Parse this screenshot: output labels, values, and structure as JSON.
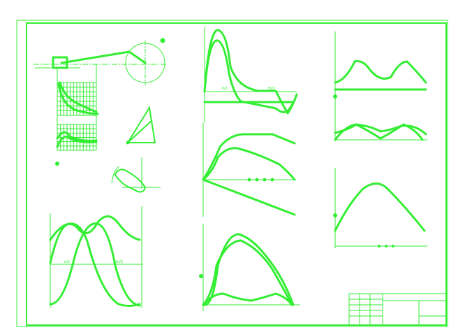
{
  "colors": {
    "background": "#ffffff",
    "line": "#33ee33"
  },
  "labels": {
    "half_pi": "π/2",
    "three_half_pi": "3π/2"
  }
}
